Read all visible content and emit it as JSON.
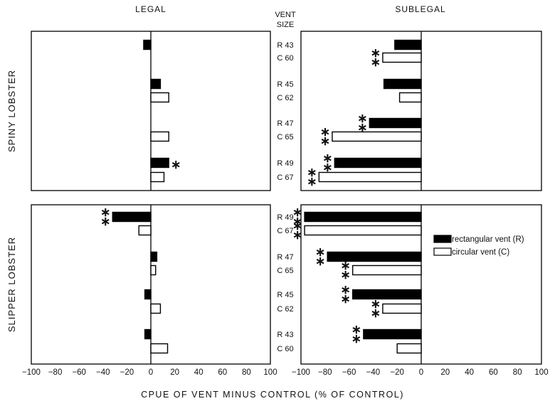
{
  "chart_data": {
    "type": "bar",
    "orientation": "horizontal",
    "x_axis_title": "CPUE OF VENT MINUS CONTROL (% OF CONTROL)",
    "center_axis_title": [
      "VENT",
      "SIZE"
    ],
    "columns": [
      "LEGAL",
      "SUBLEGAL"
    ],
    "xlim": [
      -100,
      100
    ],
    "xticks": [
      "-100",
      "-80",
      "-60",
      "-40",
      "-20",
      "0",
      "20",
      "40",
      "60",
      "80",
      "100"
    ],
    "legend": {
      "position": "right-of-lower-sublegal-panel",
      "entries": [
        {
          "label": "rectangular vent (R)",
          "color": "#000000"
        },
        {
          "label": "circular vent (C)",
          "color": "#ffffff"
        }
      ]
    },
    "significance_marker": "∗",
    "panels": [
      {
        "row": "SPINY LOBSTER",
        "vents": [
          {
            "label": "R 43",
            "type": "R",
            "legal": -6,
            "legal_sig": false,
            "sublegal": -22,
            "sublegal_sig": false
          },
          {
            "label": "C 60",
            "type": "C",
            "legal": 0,
            "legal_sig": false,
            "sublegal": -32,
            "sublegal_sig": true
          },
          {
            "label": "R 45",
            "type": "R",
            "legal": 8,
            "legal_sig": false,
            "sublegal": -31,
            "sublegal_sig": false
          },
          {
            "label": "C 62",
            "type": "C",
            "legal": 15,
            "legal_sig": false,
            "sublegal": -18,
            "sublegal_sig": false
          },
          {
            "label": "R 47",
            "type": "R",
            "legal": 0,
            "legal_sig": false,
            "sublegal": -43,
            "sublegal_sig": true
          },
          {
            "label": "C 65",
            "type": "C",
            "legal": 15,
            "legal_sig": false,
            "sublegal": -74,
            "sublegal_sig": true
          },
          {
            "label": "R 49",
            "type": "R",
            "legal": 15,
            "legal_sig": true,
            "sublegal": -72,
            "sublegal_sig": true
          },
          {
            "label": "C 67",
            "type": "C",
            "legal": 11,
            "legal_sig": false,
            "sublegal": -85,
            "sublegal_sig": true
          }
        ]
      },
      {
        "row": "SLIPPER LOBSTER",
        "vents": [
          {
            "label": "R 49",
            "type": "R",
            "legal": -32,
            "legal_sig": true,
            "sublegal": -97,
            "sublegal_sig": true
          },
          {
            "label": "C 67",
            "type": "C",
            "legal": -10,
            "legal_sig": false,
            "sublegal": -97,
            "sublegal_sig": true
          },
          {
            "label": "R 47",
            "type": "R",
            "legal": 5,
            "legal_sig": false,
            "sublegal": -78,
            "sublegal_sig": true
          },
          {
            "label": "C 65",
            "type": "C",
            "legal": 4,
            "legal_sig": false,
            "sublegal": -57,
            "sublegal_sig": true
          },
          {
            "label": "R 45",
            "type": "R",
            "legal": -5,
            "legal_sig": false,
            "sublegal": -57,
            "sublegal_sig": true
          },
          {
            "label": "C 62",
            "type": "C",
            "legal": 8,
            "legal_sig": false,
            "sublegal": -32,
            "sublegal_sig": true
          },
          {
            "label": "R 43",
            "type": "R",
            "legal": -5,
            "legal_sig": false,
            "sublegal": -48,
            "sublegal_sig": true
          },
          {
            "label": "C 60",
            "type": "C",
            "legal": 14,
            "legal_sig": false,
            "sublegal": -20,
            "sublegal_sig": false
          }
        ]
      }
    ]
  }
}
